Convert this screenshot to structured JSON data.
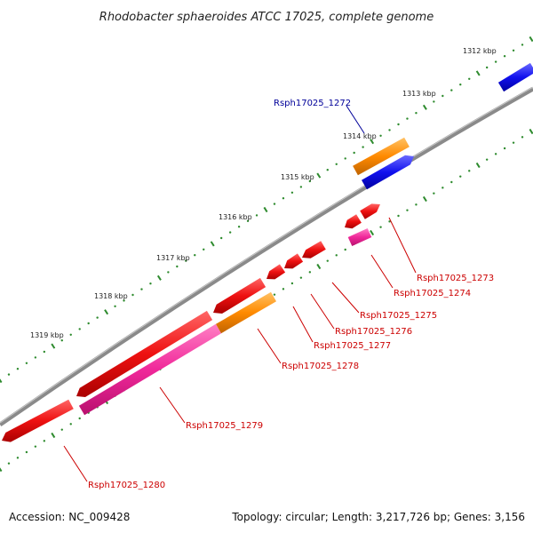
{
  "title": "Rhodobacter sphaeroides ATCC 17025, complete genome",
  "footer": {
    "accession": "Accession: NC_009428",
    "summary": "Topology: circular; Length: 3,217,726 bp; Genes: 3,156"
  },
  "colors": {
    "backbone": "#8a8a8a",
    "tick_dots": "#2e8b2e",
    "red": "#ee1111",
    "magenta": "#f0289a",
    "orange": "#ff8a00",
    "blue": "#1010ee",
    "label_red": "#cc0000",
    "label_blue": "#000099"
  },
  "chart_data": {
    "type": "genome-map",
    "scale_labels": [
      "1312 kbp",
      "1313 kbp",
      "1314 kbp",
      "1315 kbp",
      "1316 kbp",
      "1317 kbp",
      "1318 kbp",
      "1319 kbp"
    ],
    "gene_labels": [
      {
        "text": "Rsph17025_1272",
        "color": "label_blue"
      },
      {
        "text": "Rsph17025_1273",
        "color": "label_red"
      },
      {
        "text": "Rsph17025_1274",
        "color": "label_red"
      },
      {
        "text": "Rsph17025_1275",
        "color": "label_red"
      },
      {
        "text": "Rsph17025_1276",
        "color": "label_red"
      },
      {
        "text": "Rsph17025_1277",
        "color": "label_red"
      },
      {
        "text": "Rsph17025_1278",
        "color": "label_red"
      },
      {
        "text": "Rsph17025_1279",
        "color": "label_red"
      },
      {
        "text": "Rsph17025_1280",
        "color": "label_red"
      }
    ]
  }
}
